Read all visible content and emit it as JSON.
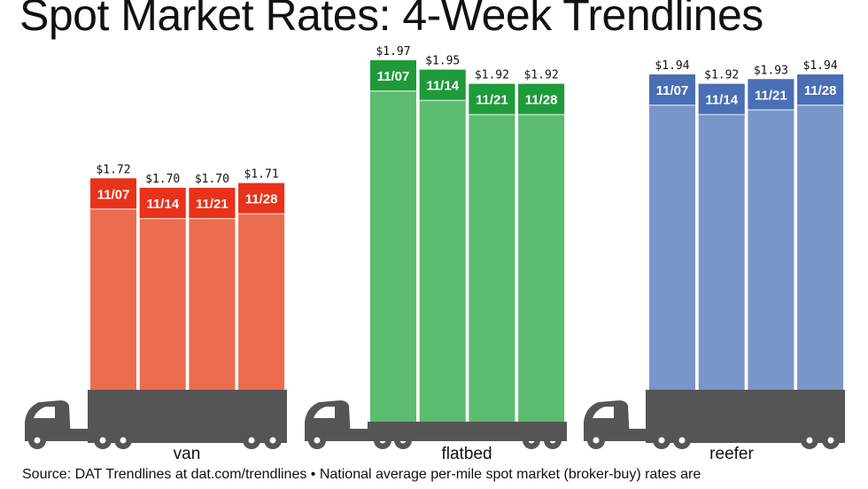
{
  "title": "Spot Market Rates: 4-Week Trendlines",
  "source_note": "Source: DAT Trendlines at dat.com/trendlines • National average per-mile spot market (broker-buy) rates are",
  "colors": {
    "van_body": "#ec6c50",
    "van_cap": "#e8321a",
    "flatbed_body": "#5bbb6e",
    "flatbed_cap": "#1f9a3a",
    "reefer_body": "#7896c8",
    "reefer_cap": "#4a6fb5",
    "truck": "#555555",
    "text": "#111111"
  },
  "icons": [
    "truck-icon"
  ],
  "chart_data": [
    {
      "type": "bar",
      "category": "van",
      "categories": [
        "11/07",
        "11/14",
        "11/21",
        "11/28"
      ],
      "values": [
        1.72,
        1.7,
        1.7,
        1.71
      ],
      "value_labels": [
        "$1.72",
        "$1.70",
        "$1.70",
        "$1.71"
      ]
    },
    {
      "type": "bar",
      "category": "flatbed",
      "categories": [
        "11/07",
        "11/14",
        "11/21",
        "11/28"
      ],
      "values": [
        1.97,
        1.95,
        1.92,
        1.92
      ],
      "value_labels": [
        "$1.97",
        "$1.95",
        "$1.92",
        "$1.92"
      ]
    },
    {
      "type": "bar",
      "category": "reefer",
      "categories": [
        "11/07",
        "11/14",
        "11/21",
        "11/28"
      ],
      "values": [
        1.94,
        1.92,
        1.93,
        1.94
      ],
      "value_labels": [
        "$1.94",
        "$1.92",
        "$1.93",
        "$1.94"
      ]
    }
  ]
}
